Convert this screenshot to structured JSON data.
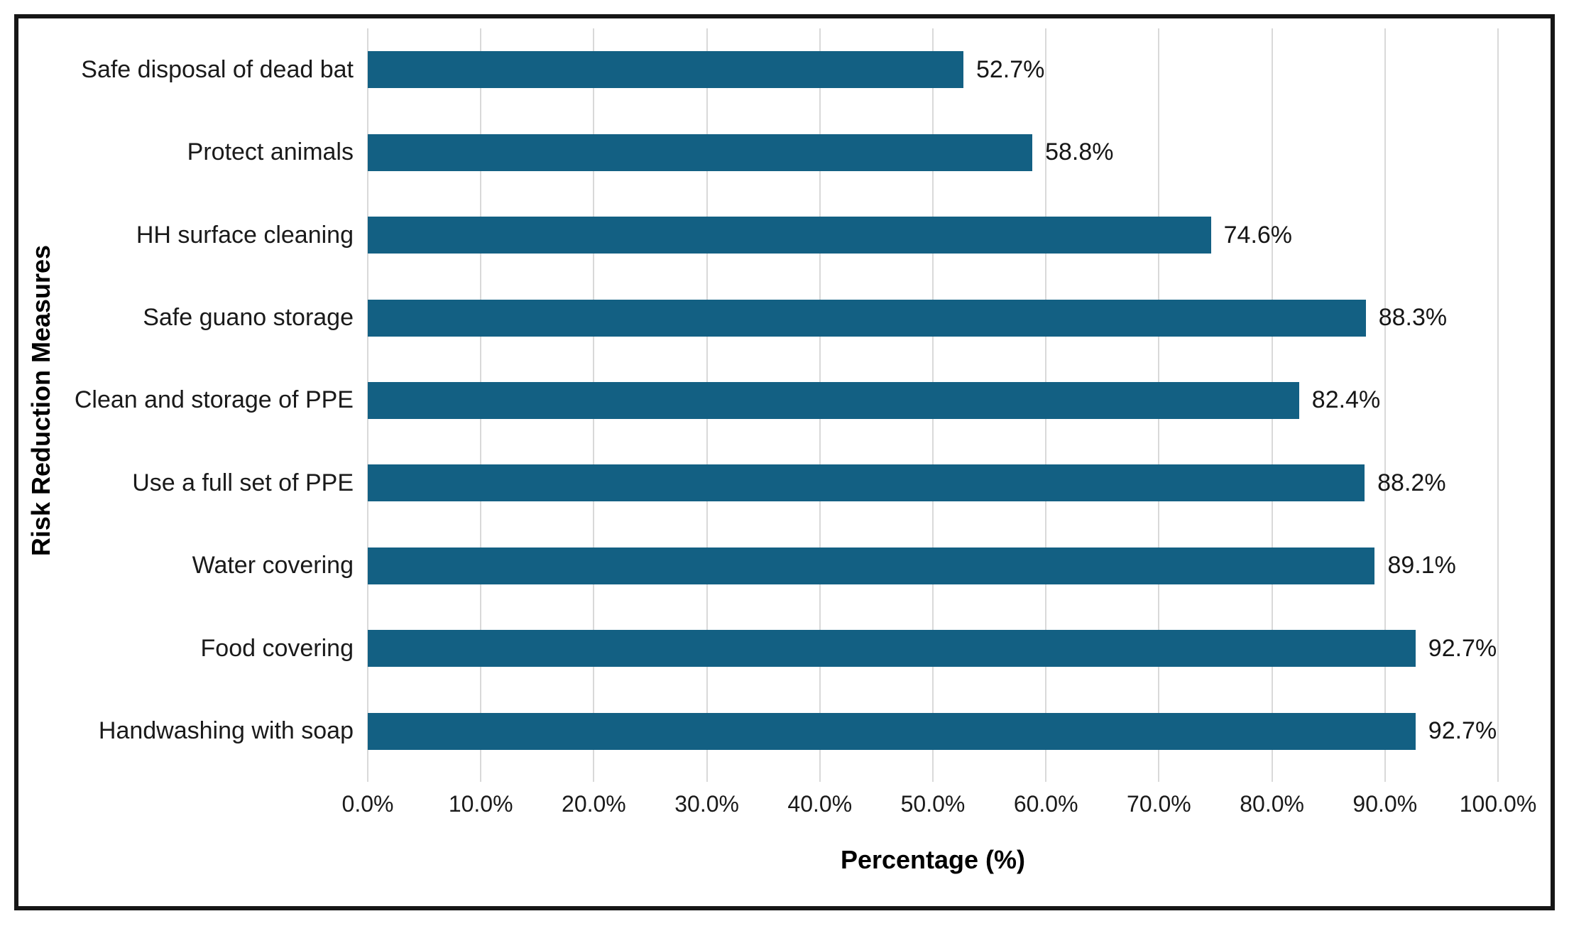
{
  "frame": {
    "border_color": "#161616",
    "background": "#ffffff"
  },
  "chart_data": {
    "type": "bar",
    "orientation": "horizontal",
    "title": "",
    "xlabel": "Percentage (%)",
    "ylabel": "Risk Reduction Measures",
    "xlim": [
      0,
      100
    ],
    "grid": "vertical",
    "legend": "none",
    "bar_color": "#136083",
    "gridline_color": "#d9d9d9",
    "x_tick_step": 10,
    "x_tick_labels": [
      "0.0%",
      "10.0%",
      "20.0%",
      "30.0%",
      "40.0%",
      "50.0%",
      "60.0%",
      "70.0%",
      "80.0%",
      "90.0%",
      "100.0%"
    ],
    "categories": [
      "Safe disposal of dead bat",
      "Protect animals",
      "HH surface cleaning",
      "Safe guano storage",
      "Clean and storage of PPE",
      "Use a full set of PPE",
      "Water covering",
      "Food covering",
      "Handwashing with soap"
    ],
    "values": [
      52.7,
      58.8,
      74.6,
      88.3,
      82.4,
      88.2,
      89.1,
      92.7,
      92.7
    ],
    "value_labels": [
      "52.7%",
      "58.8%",
      "74.6%",
      "88.3%",
      "82.4%",
      "88.2%",
      "89.1%",
      "92.7%",
      "92.7%"
    ]
  }
}
